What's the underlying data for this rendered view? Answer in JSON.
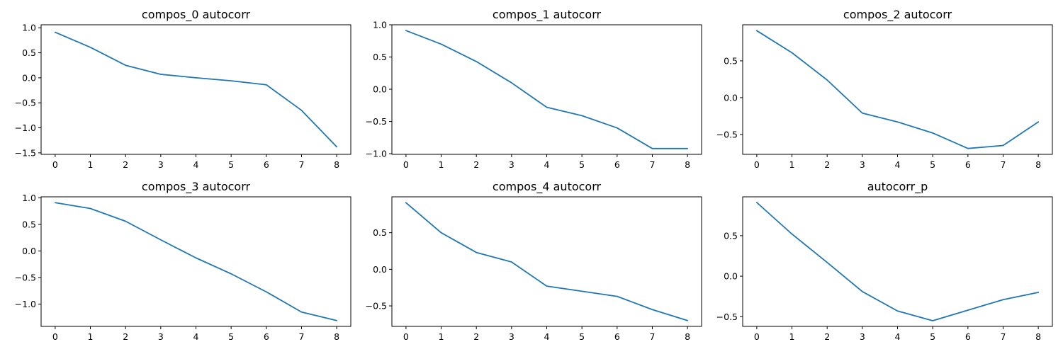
{
  "figure": {
    "background": "#ffffff",
    "line_color": "#1f77b4"
  },
  "chart_data": [
    {
      "type": "line",
      "title": "compos_0 autocorr",
      "x": [
        0,
        1,
        2,
        3,
        4,
        5,
        6,
        7,
        8
      ],
      "series": [
        {
          "values": [
            0.91,
            0.61,
            0.25,
            0.07,
            0.0,
            -0.06,
            -0.14,
            -0.65,
            -1.38
          ]
        }
      ],
      "xlim": [
        -0.4,
        8.4
      ],
      "ylim": [
        -1.53,
        1.06
      ],
      "xticks": [
        "0",
        "1",
        "2",
        "3",
        "4",
        "5",
        "6",
        "7",
        "8"
      ],
      "yticks": [
        "1.0",
        "0.5",
        "0.0",
        "−0.5",
        "−1.0",
        "−1.5"
      ],
      "ytick_values": [
        1.0,
        0.5,
        0.0,
        -0.5,
        -1.0,
        -1.5
      ],
      "xlabel": "",
      "ylabel": "",
      "grid": false
    },
    {
      "type": "line",
      "title": "compos_1 autocorr",
      "x": [
        0,
        1,
        2,
        3,
        4,
        5,
        6,
        7,
        8
      ],
      "series": [
        {
          "values": [
            0.91,
            0.7,
            0.43,
            0.1,
            -0.28,
            -0.41,
            -0.6,
            -0.92,
            -0.92
          ]
        }
      ],
      "xlim": [
        -0.4,
        8.4
      ],
      "ylim": [
        -1.01,
        1.0
      ],
      "xticks": [
        "0",
        "1",
        "2",
        "3",
        "4",
        "5",
        "6",
        "7",
        "8"
      ],
      "yticks": [
        "1.0",
        "0.5",
        "0.0",
        "−0.5",
        "−1.0"
      ],
      "ytick_values": [
        1.0,
        0.5,
        0.0,
        -0.5,
        -1.0
      ],
      "xlabel": "",
      "ylabel": "",
      "grid": false
    },
    {
      "type": "line",
      "title": "compos_2 autocorr",
      "x": [
        0,
        1,
        2,
        3,
        4,
        5,
        6,
        7,
        8
      ],
      "series": [
        {
          "values": [
            0.91,
            0.61,
            0.24,
            -0.21,
            -0.33,
            -0.48,
            -0.69,
            -0.65,
            -0.33
          ]
        }
      ],
      "xlim": [
        -0.4,
        8.4
      ],
      "ylim": [
        -0.77,
        0.99
      ],
      "xticks": [
        "0",
        "1",
        "2",
        "3",
        "4",
        "5",
        "6",
        "7",
        "8"
      ],
      "yticks": [
        "0.5",
        "0.0",
        "−0.5"
      ],
      "ytick_values": [
        0.5,
        0.0,
        -0.5
      ],
      "xlabel": "",
      "ylabel": "",
      "grid": false
    },
    {
      "type": "line",
      "title": "compos_3 autocorr",
      "x": [
        0,
        1,
        2,
        3,
        4,
        5,
        6,
        7,
        8
      ],
      "series": [
        {
          "values": [
            0.91,
            0.8,
            0.56,
            0.21,
            -0.13,
            -0.43,
            -0.77,
            -1.15,
            -1.31
          ]
        }
      ],
      "xlim": [
        -0.4,
        8.4
      ],
      "ylim": [
        -1.42,
        1.02
      ],
      "xticks": [
        "0",
        "1",
        "2",
        "3",
        "4",
        "5",
        "6",
        "7",
        "8"
      ],
      "yticks": [
        "1.0",
        "0.5",
        "0.0",
        "−0.5",
        "−1.0"
      ],
      "ytick_values": [
        1.0,
        0.5,
        0.0,
        -0.5,
        -1.0
      ],
      "xlabel": "",
      "ylabel": "",
      "grid": false
    },
    {
      "type": "line",
      "title": "compos_4 autocorr",
      "x": [
        0,
        1,
        2,
        3,
        4,
        5,
        6,
        7,
        8
      ],
      "series": [
        {
          "values": [
            0.91,
            0.5,
            0.23,
            0.1,
            -0.23,
            -0.3,
            -0.37,
            -0.55,
            -0.7
          ]
        }
      ],
      "xlim": [
        -0.4,
        8.4
      ],
      "ylim": [
        -0.78,
        0.99
      ],
      "xticks": [
        "0",
        "1",
        "2",
        "3",
        "4",
        "5",
        "6",
        "7",
        "8"
      ],
      "yticks": [
        "0.5",
        "0.0",
        "−0.5"
      ],
      "ytick_values": [
        0.5,
        0.0,
        -0.5
      ],
      "xlabel": "",
      "ylabel": "",
      "grid": false
    },
    {
      "type": "line",
      "title": "autocorr_p",
      "x": [
        0,
        1,
        2,
        3,
        4,
        5,
        6,
        7,
        8
      ],
      "series": [
        {
          "values": [
            0.91,
            0.52,
            0.17,
            -0.19,
            -0.43,
            -0.55,
            -0.42,
            -0.29,
            -0.2
          ]
        }
      ],
      "xlim": [
        -0.4,
        8.4
      ],
      "ylim": [
        -0.62,
        0.98
      ],
      "xticks": [
        "0",
        "1",
        "2",
        "3",
        "4",
        "5",
        "6",
        "7",
        "8"
      ],
      "yticks": [
        "0.5",
        "0.0",
        "−0.5"
      ],
      "ytick_values": [
        0.5,
        0.0,
        -0.5
      ],
      "xlabel": "",
      "ylabel": "",
      "grid": false
    }
  ]
}
